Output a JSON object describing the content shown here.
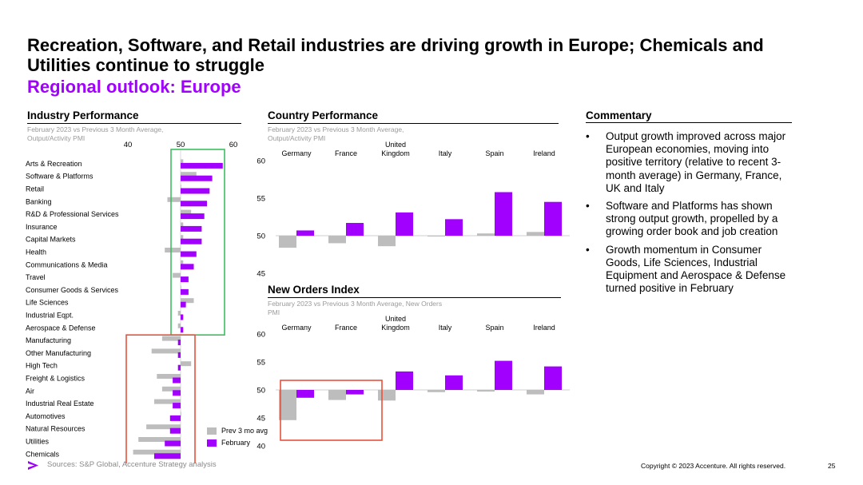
{
  "title": "Recreation, Software, and Retail industries are driving growth in Europe; Chemicals and Utilities continue to struggle",
  "subtitle": "Regional outlook: Europe",
  "colors": {
    "accent": "#a100ff",
    "gray": "#bdbdbd",
    "green": "#3cbf62",
    "red": "#e8513b"
  },
  "industry": {
    "heading": "Industry Performance",
    "note": "February 2023 vs Previous 3 Month Average, Output/Activity PMI"
  },
  "country": {
    "heading": "Country Performance",
    "note": "February 2023 vs Previous 3 Month Average, Output/Activity PMI"
  },
  "orders": {
    "heading": "New Orders Index",
    "note": "February 2023 vs Previous 3 Month Average, New Orders PMI"
  },
  "commentary": {
    "heading": "Commentary",
    "bullets": [
      "Output growth improved across major European economies, moving into positive territory (relative to recent 3-month average) in Germany, France, UK and Italy",
      "Software and Platforms has shown strong output growth, propelled by a growing order book and job creation",
      "Growth momentum in Consumer Goods, Life Sciences, Industrial Equipment and Aerospace & Defense turned positive in February"
    ]
  },
  "legend": {
    "prev": "Prev 3 mo avg",
    "feb": "February"
  },
  "footer": {
    "sources": "Sources: S&P Global, Accenture Strategy analysis",
    "copyright": "Copyright © 2023 Accenture. All rights reserved.",
    "page": "25"
  },
  "chart_data": [
    {
      "type": "bar",
      "orientation": "horizontal",
      "title": "Industry Performance",
      "categories": [
        "Arts & Recreation",
        "Software & Platforms",
        "Retail",
        "Banking",
        "R&D & Professional Services",
        "Insurance",
        "Capital Markets",
        "Health",
        "Communications & Media",
        "Travel",
        "Consumer Goods & Services",
        "Life Sciences",
        "Industrial Eqpt.",
        "Aerospace & Defense",
        "Manufacturing",
        "Other Manufacturing",
        "High Tech",
        "Freight & Logistics",
        "Air",
        "Industrial Real Estate",
        "Automotives",
        "Natural Resources",
        "Utilities",
        "Chemicals"
      ],
      "series": [
        {
          "name": "Prev 3 mo avg",
          "values": [
            50.5,
            53.0,
            50.0,
            47.5,
            52.0,
            50.5,
            50.5,
            47.0,
            50.5,
            48.5,
            50.0,
            52.5,
            49.5,
            49.5,
            46.5,
            44.5,
            52.0,
            45.5,
            46.5,
            45.0,
            50.0,
            43.5,
            42.0,
            41.0
          ]
        },
        {
          "name": "February",
          "values": [
            58.0,
            56.0,
            55.5,
            55.0,
            54.5,
            54.0,
            54.0,
            53.0,
            52.5,
            51.5,
            51.5,
            51.0,
            50.5,
            50.5,
            49.5,
            49.5,
            49.5,
            48.5,
            48.5,
            48.5,
            48.0,
            48.0,
            47.0,
            45.0
          ]
        }
      ],
      "xlim": [
        40,
        60
      ],
      "xticks": [
        "40",
        "50",
        "60"
      ]
    },
    {
      "type": "bar",
      "title": "Country Performance",
      "categories": [
        "Germany",
        "France",
        "United Kingdom",
        "Italy",
        "Spain",
        "Ireland"
      ],
      "series": [
        {
          "name": "Prev 3 mo avg",
          "values": [
            48.4,
            49.0,
            48.6,
            49.9,
            50.3,
            50.5
          ]
        },
        {
          "name": "February",
          "values": [
            50.7,
            51.7,
            53.1,
            52.2,
            55.8,
            54.5
          ]
        }
      ],
      "ylim": [
        45,
        60
      ],
      "yticks": [
        "45",
        "50",
        "55",
        "60"
      ]
    },
    {
      "type": "bar",
      "title": "New Orders Index",
      "categories": [
        "Germany",
        "France",
        "United Kingdom",
        "Italy",
        "Spain",
        "Ireland"
      ],
      "series": [
        {
          "name": "Prev 3 mo avg",
          "values": [
            44.6,
            48.2,
            48.1,
            49.6,
            49.7,
            49.2
          ]
        },
        {
          "name": "February",
          "values": [
            48.6,
            49.2,
            53.3,
            52.6,
            55.2,
            54.2
          ]
        }
      ],
      "ylim": [
        40,
        60
      ],
      "yticks": [
        "40",
        "45",
        "50",
        "55",
        "60"
      ]
    }
  ]
}
